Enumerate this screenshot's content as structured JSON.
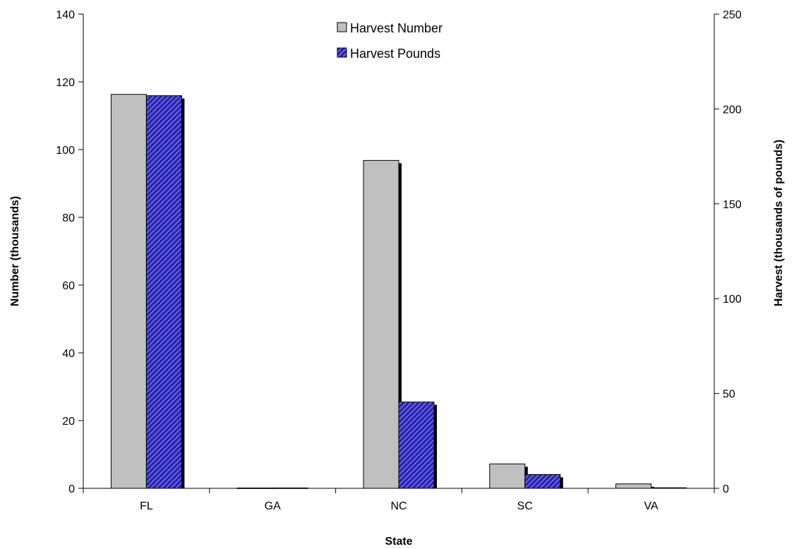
{
  "chart_data": {
    "type": "bar",
    "title": "",
    "categories": [
      "FL",
      "GA",
      "NC",
      "SC",
      "VA"
    ],
    "xlabel": "State",
    "ylabel": "Number (thousands)",
    "y2label": "Harvest (thousands of pounds)",
    "ylim": [
      0,
      140
    ],
    "y2lim": [
      0,
      250
    ],
    "yticks": [
      "0",
      "20",
      "40",
      "60",
      "80",
      "100",
      "120",
      "140"
    ],
    "y2ticks": [
      "0",
      "50",
      "100",
      "150",
      "200",
      "250"
    ],
    "grid": false,
    "legend_position": "top-center",
    "series": [
      {
        "name": "Harvest Number",
        "axis": "left",
        "color": "#c0c0c0",
        "values": [
          116.3,
          0.1,
          96.8,
          7.2,
          1.3
        ]
      },
      {
        "name": "Harvest Pounds",
        "axis": "right",
        "color": "#1f1aa6",
        "pattern": "diagonal-hatch",
        "values": [
          207,
          0.2,
          45.5,
          7.3,
          0.3
        ]
      }
    ]
  }
}
